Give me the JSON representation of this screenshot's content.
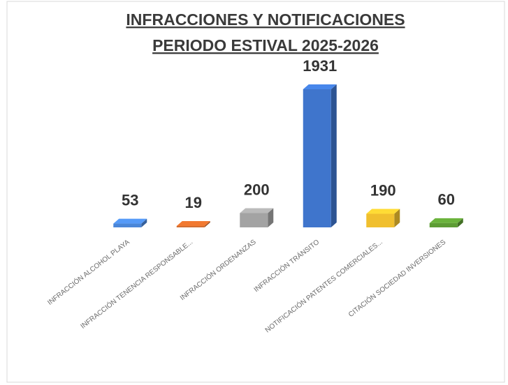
{
  "chart_data": {
    "type": "bar3d",
    "title": "INFRACCIONES Y NOTIFICACIONES",
    "subtitle": "PERIODO ESTIVAL 2025-2026",
    "categories": [
      "INFRACCIÓN ALCOHOL PLAYA",
      "INFRACCIÓN TENENCIA RESPONSABLE...",
      "INFRACCIÓN ORDENANZAS",
      "INFRACCIÓN TRÁNSITO",
      "NOTIFICACIÓN PATENTES COMERCIALES...",
      "CITACIÓN SOCIEDAD INVERSIONES"
    ],
    "values": [
      53,
      19,
      200,
      1931,
      190,
      60
    ],
    "colors": [
      "#4a86d8",
      "#d2692a",
      "#a3a3a3",
      "#3f75cc",
      "#f0bf2e",
      "#5d9c34"
    ]
  }
}
